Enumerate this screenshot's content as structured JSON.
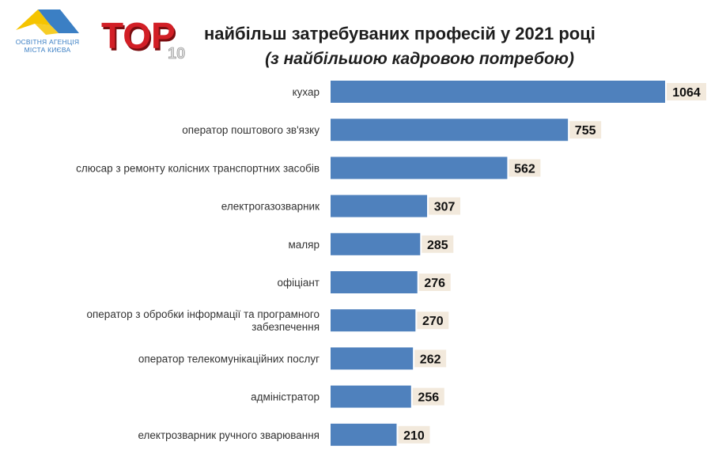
{
  "header": {
    "logo_line1": "ОСВІТНЯ АГЕНЦІЯ",
    "logo_line2": "МІСТА КИЄВА",
    "badge_word": "TOP",
    "badge_number": "10",
    "title": "найбільш затребуваних професій у 2021 році",
    "subtitle": "(з найбільшою кадровою потребою)"
  },
  "colors": {
    "bar": "#4f81bd",
    "label_bg": "#f2e9dc",
    "badge_red": "#d21f26",
    "logo_yellow": "#f5c400",
    "logo_blue": "#3b7fc4"
  },
  "chart_data": {
    "type": "bar",
    "orientation": "horizontal",
    "categories": [
      "кухар",
      "оператор поштового зв'язку",
      "слюсар з ремонту колісних транспортних засобів",
      "електрогазозварник",
      "маляр",
      "офіціант",
      "оператор з обробки інформації та програмного забезпечення",
      "оператор телекомунікаційних послуг",
      "адміністратор",
      "електрозварник ручного зварювання"
    ],
    "category_lines": [
      [
        "кухар"
      ],
      [
        "оператор поштового зв'язку"
      ],
      [
        "слюсар з ремонту колісних транспортних засобів"
      ],
      [
        "електрогазозварник"
      ],
      [
        "маляр"
      ],
      [
        "офіціант"
      ],
      [
        "оператор з обробки інформації та програмного",
        "забезпечення"
      ],
      [
        "оператор телекомунікаційних послуг"
      ],
      [
        "адміністратор"
      ],
      [
        "електрозварник ручного зварювання"
      ]
    ],
    "values": [
      1064,
      755,
      562,
      307,
      285,
      276,
      270,
      262,
      256,
      210
    ],
    "data_labels": [
      "1064",
      "755",
      "562",
      "307",
      "285",
      "276",
      "270",
      "262",
      "256",
      "210"
    ],
    "xlim": [
      0,
      1064
    ],
    "grid": false,
    "legend": "none"
  }
}
